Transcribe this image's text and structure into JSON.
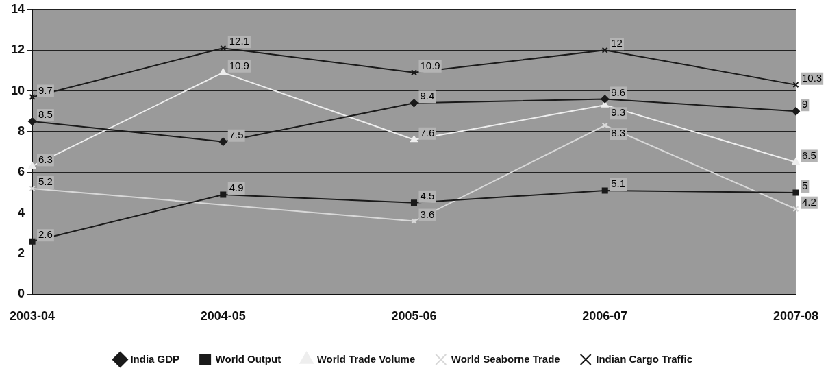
{
  "chart_data": {
    "type": "line",
    "categories": [
      "2003-04",
      "2004-05",
      "2005-06",
      "2006-07",
      "2007-08"
    ],
    "series": [
      {
        "name": "India GDP",
        "color": "#1a1a1a",
        "marker": "diamond",
        "values": [
          8.5,
          7.5,
          9.4,
          9.6,
          9
        ]
      },
      {
        "name": "World Output",
        "color": "#1a1a1a",
        "marker": "square",
        "values": [
          2.6,
          4.9,
          4.5,
          5.1,
          5
        ]
      },
      {
        "name": "World Trade Volume",
        "color": "#eeeeee",
        "marker": "triangle",
        "values": [
          6.3,
          10.9,
          7.6,
          9.3,
          6.5
        ]
      },
      {
        "name": "World Seaborne Trade",
        "color": "#d8d8d8",
        "marker": "cross",
        "values": [
          5.2,
          null,
          3.6,
          8.3,
          4.2
        ]
      },
      {
        "name": "Indian Cargo Traffic",
        "color": "#1a1a1a",
        "marker": "cross",
        "values": [
          9.7,
          12.1,
          10.9,
          12,
          10.3
        ]
      }
    ],
    "ylim": [
      0,
      14
    ],
    "yticks": [
      0,
      2,
      4,
      6,
      8,
      10,
      12,
      14
    ],
    "grid": "y",
    "legend": "bottom",
    "data_labels": true
  }
}
